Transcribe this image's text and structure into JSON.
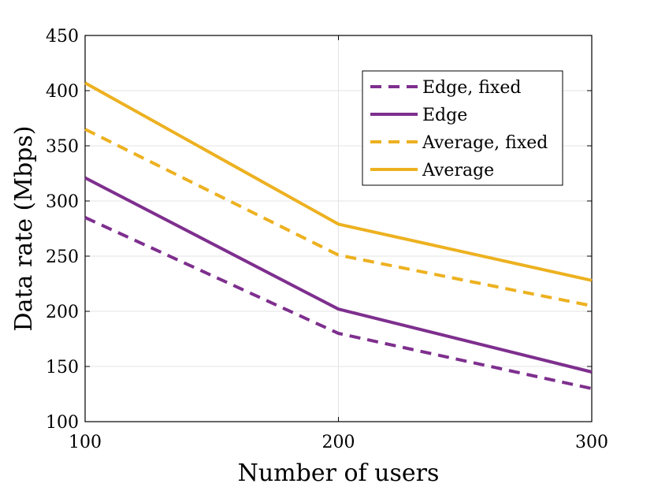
{
  "chart_data": {
    "type": "line",
    "title": "",
    "xlabel": "Number of users",
    "ylabel": "Data rate (Mbps)",
    "x": [
      100,
      200,
      300
    ],
    "xlim": [
      100,
      300
    ],
    "ylim": [
      100,
      450
    ],
    "xticks": [
      100,
      200,
      300
    ],
    "yticks": [
      100,
      150,
      200,
      250,
      300,
      350,
      400,
      450
    ],
    "xtick_labels": [
      "100",
      "200",
      "300"
    ],
    "ytick_labels": [
      "100",
      "150",
      "200",
      "250",
      "300",
      "350",
      "400",
      "450"
    ],
    "grid": true,
    "legend_position": "top-right",
    "series": [
      {
        "name": "Edge, fixed",
        "values": [
          285,
          180,
          130
        ],
        "color": "#7E2F8E",
        "dash": "dashed"
      },
      {
        "name": "Edge",
        "values": [
          321,
          202,
          145
        ],
        "color": "#7E2F8E",
        "dash": "solid"
      },
      {
        "name": "Average, fixed",
        "values": [
          365,
          251,
          205
        ],
        "color": "#EDB120",
        "dash": "dashed"
      },
      {
        "name": "Average",
        "values": [
          407,
          279,
          228
        ],
        "color": "#EDB120",
        "dash": "solid"
      }
    ]
  }
}
